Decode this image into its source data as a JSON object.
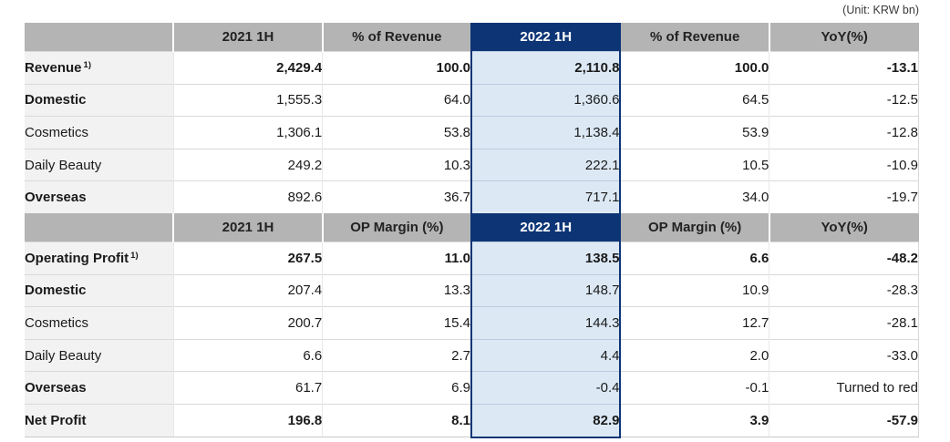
{
  "unit_label": "(Unit: KRW bn)",
  "colors": {
    "header_gray": "#b4b4b4",
    "label_gray": "#f2f2f2",
    "highlight_navy": "#0d3576",
    "highlight_light_blue": "#dce9f5"
  },
  "table": {
    "highlight_column_index": 2,
    "sections": [
      {
        "header": [
          "",
          "2021 1H",
          "% of Revenue",
          "2022 1H",
          "% of Revenue",
          "YoY(%)"
        ],
        "rows": [
          {
            "label": "Revenue",
            "sup": "1)",
            "indent": 0,
            "bold": true,
            "values": [
              "2,429.4",
              "100.0",
              "2,110.8",
              "100.0",
              "-13.1"
            ]
          },
          {
            "label": "Domestic",
            "indent": 1,
            "label_bold": true,
            "values": [
              "1,555.3",
              "64.0",
              "1,360.6",
              "64.5",
              "-12.5"
            ]
          },
          {
            "label": "Cosmetics",
            "indent": 2,
            "values": [
              "1,306.1",
              "53.8",
              "1,138.4",
              "53.9",
              "-12.8"
            ]
          },
          {
            "label": "Daily Beauty",
            "indent": 2,
            "values": [
              "249.2",
              "10.3",
              "222.1",
              "10.5",
              "-10.9"
            ]
          },
          {
            "label": "Overseas",
            "indent": 1,
            "label_bold": true,
            "values": [
              "892.6",
              "36.7",
              "717.1",
              "34.0",
              "-19.7"
            ]
          }
        ]
      },
      {
        "header": [
          "",
          "2021 1H",
          "OP Margin (%)",
          "2022 1H",
          "OP Margin (%)",
          "YoY(%)"
        ],
        "rows": [
          {
            "label": "Operating Profit",
            "sup": "1)",
            "indent": 0,
            "bold": true,
            "values": [
              "267.5",
              "11.0",
              "138.5",
              "6.6",
              "-48.2"
            ]
          },
          {
            "label": "Domestic",
            "indent": 1,
            "label_bold": true,
            "values": [
              "207.4",
              "13.3",
              "148.7",
              "10.9",
              "-28.3"
            ]
          },
          {
            "label": "Cosmetics",
            "indent": 2,
            "values": [
              "200.7",
              "15.4",
              "144.3",
              "12.7",
              "-28.1"
            ]
          },
          {
            "label": "Daily Beauty",
            "indent": 2,
            "values": [
              "6.6",
              "2.7",
              "4.4",
              "2.0",
              "-33.0"
            ]
          },
          {
            "label": "Overseas",
            "indent": 1,
            "label_bold": true,
            "values": [
              "61.7",
              "6.9",
              "-0.4",
              "-0.1",
              "Turned to red"
            ]
          },
          {
            "label": "Net Profit",
            "indent": 0,
            "bold": true,
            "values": [
              "196.8",
              "8.1",
              "82.9",
              "3.9",
              "-57.9"
            ]
          }
        ]
      }
    ]
  }
}
